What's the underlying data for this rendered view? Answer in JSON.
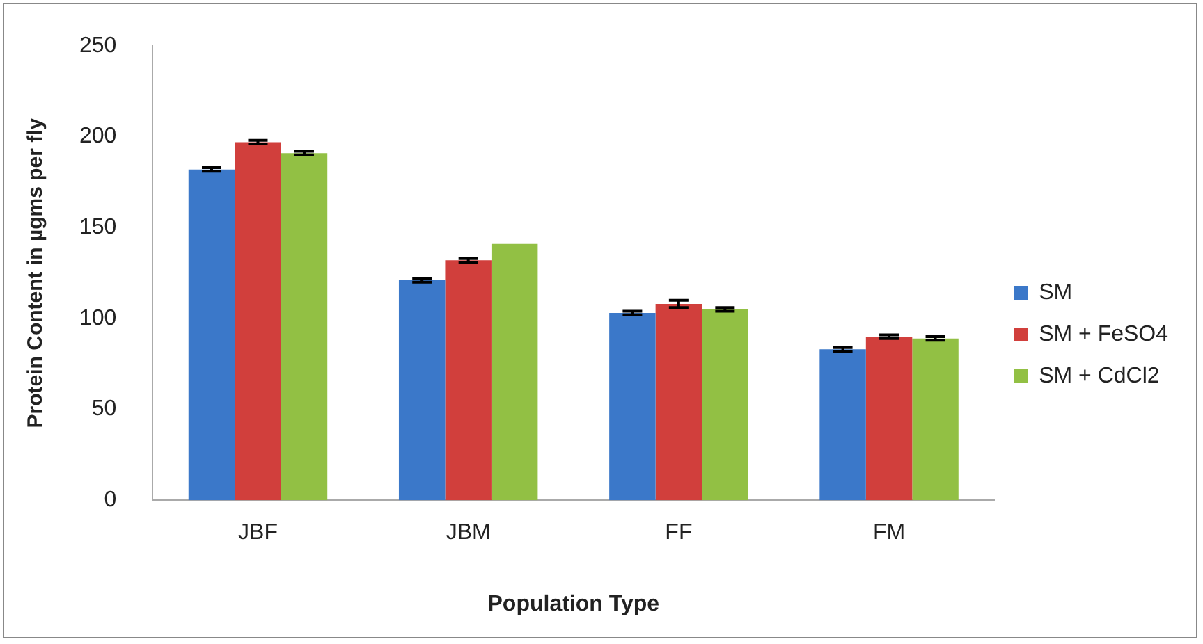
{
  "chart_data": {
    "type": "bar",
    "xlabel": "Population Type",
    "ylabel": "Protein Content in µgms per fly",
    "categories": [
      "JBF",
      "JBM",
      "FF",
      "FM"
    ],
    "series": [
      {
        "name": "SM",
        "color": "#3b78c9",
        "values": [
          182,
          121,
          103,
          83
        ],
        "errors": [
          1,
          1,
          1,
          1
        ]
      },
      {
        "name": "SM + FeSO4",
        "color": "#d13f3c",
        "values": [
          197,
          132,
          108,
          90
        ],
        "errors": [
          1,
          1,
          2,
          1
        ]
      },
      {
        "name": "SM + CdCl2",
        "color": "#92c044",
        "values": [
          191,
          141,
          105,
          89
        ],
        "errors": [
          1,
          null,
          1,
          1
        ]
      }
    ],
    "ylim": [
      0,
      250
    ],
    "yticks": [
      0,
      50,
      100,
      150,
      200,
      250
    ],
    "grid": false,
    "legend": "right"
  }
}
